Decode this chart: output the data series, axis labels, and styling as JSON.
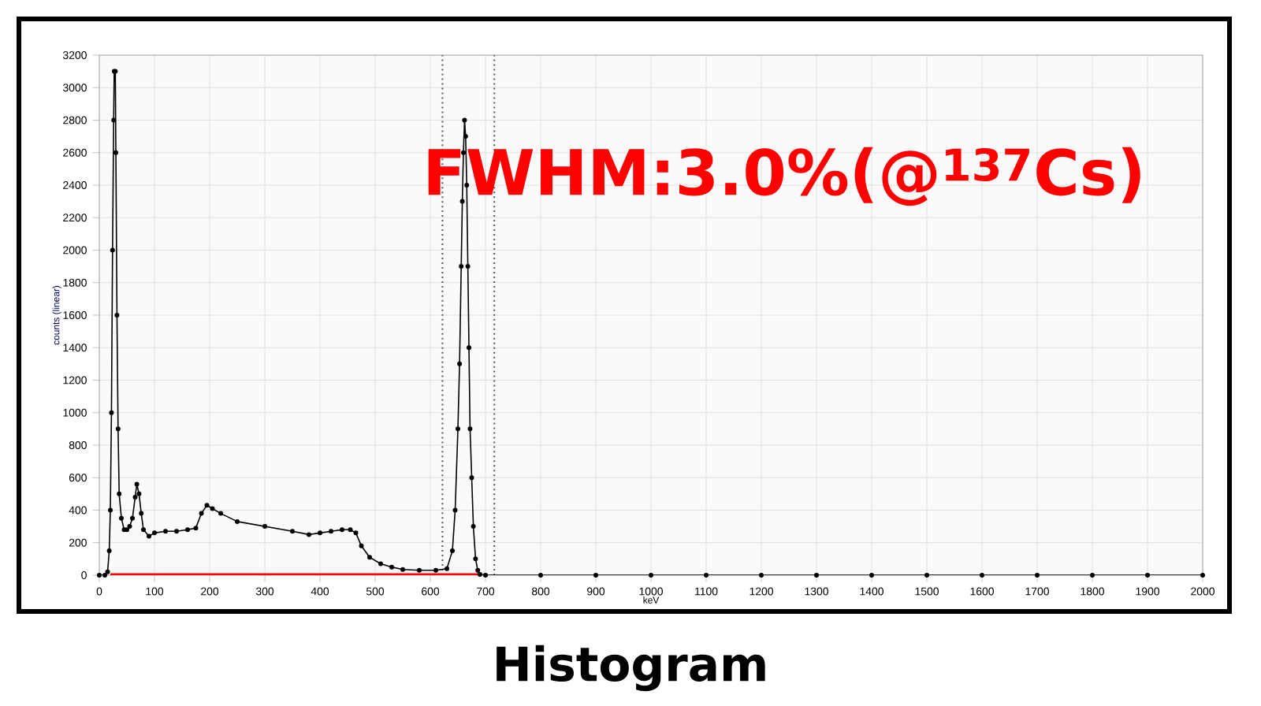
{
  "chart_data": {
    "type": "line",
    "title": "Histogram",
    "xlabel": "keV",
    "ylabel": "counts (linear)",
    "annotations": [
      "FWHM:3.0%(@$^{137}$Cs)"
    ],
    "xlim": [
      0,
      2000
    ],
    "ylim": [
      0,
      3200
    ],
    "xticks": [
      0,
      100,
      200,
      300,
      400,
      500,
      600,
      700,
      800,
      900,
      1000,
      1100,
      1200,
      1300,
      1400,
      1500,
      1600,
      1700,
      1800,
      1900,
      2000
    ],
    "yticks": [
      0,
      200,
      400,
      600,
      800,
      1000,
      1200,
      1400,
      1600,
      1800,
      2000,
      2200,
      2400,
      2600,
      2800,
      3000,
      3200
    ],
    "grid": true,
    "marker": "circle",
    "line_style": "solid",
    "ref_lines": [
      {
        "axis": "x",
        "value": 622,
        "line_style": "dotted",
        "color": "#555555"
      },
      {
        "axis": "x",
        "value": 716,
        "line_style": "dotted",
        "color": "#555555"
      }
    ],
    "series": [
      {
        "color": "#ff0000",
        "marker": "none",
        "x": [
          20,
          690
        ],
        "values": [
          0,
          0
        ]
      },
      {
        "color": "#000000",
        "x": [
          0,
          10,
          15,
          18,
          20,
          22,
          24,
          26,
          27,
          29,
          30,
          32,
          34,
          36,
          40,
          45,
          50,
          55,
          60,
          65,
          68,
          72,
          76,
          80,
          90,
          100,
          120,
          140,
          160,
          175,
          185,
          195,
          205,
          220,
          250,
          300,
          350,
          380,
          400,
          420,
          440,
          455,
          465,
          475,
          490,
          510,
          530,
          550,
          580,
          610,
          630,
          640,
          645,
          650,
          653,
          656,
          658,
          660,
          662,
          664,
          666,
          668,
          670,
          672,
          675,
          678,
          682,
          686,
          690,
          700,
          800,
          900,
          1000,
          1100,
          1200,
          1300,
          1400,
          1500,
          1600,
          1700,
          1800,
          1900,
          2000
        ],
        "values": [
          0,
          0,
          20,
          150,
          400,
          1000,
          2000,
          2800,
          3100,
          3100,
          2600,
          1600,
          900,
          500,
          350,
          280,
          280,
          300,
          350,
          480,
          560,
          500,
          380,
          280,
          240,
          260,
          270,
          270,
          280,
          290,
          380,
          430,
          410,
          380,
          330,
          300,
          270,
          250,
          260,
          270,
          280,
          280,
          260,
          180,
          110,
          70,
          50,
          35,
          30,
          30,
          40,
          150,
          400,
          900,
          1300,
          1900,
          2300,
          2600,
          2800,
          2700,
          2400,
          1900,
          1400,
          900,
          600,
          300,
          100,
          30,
          5,
          0,
          0,
          0,
          0,
          0,
          0,
          0,
          0,
          0,
          0,
          0,
          0,
          0,
          0
        ]
      }
    ]
  }
}
